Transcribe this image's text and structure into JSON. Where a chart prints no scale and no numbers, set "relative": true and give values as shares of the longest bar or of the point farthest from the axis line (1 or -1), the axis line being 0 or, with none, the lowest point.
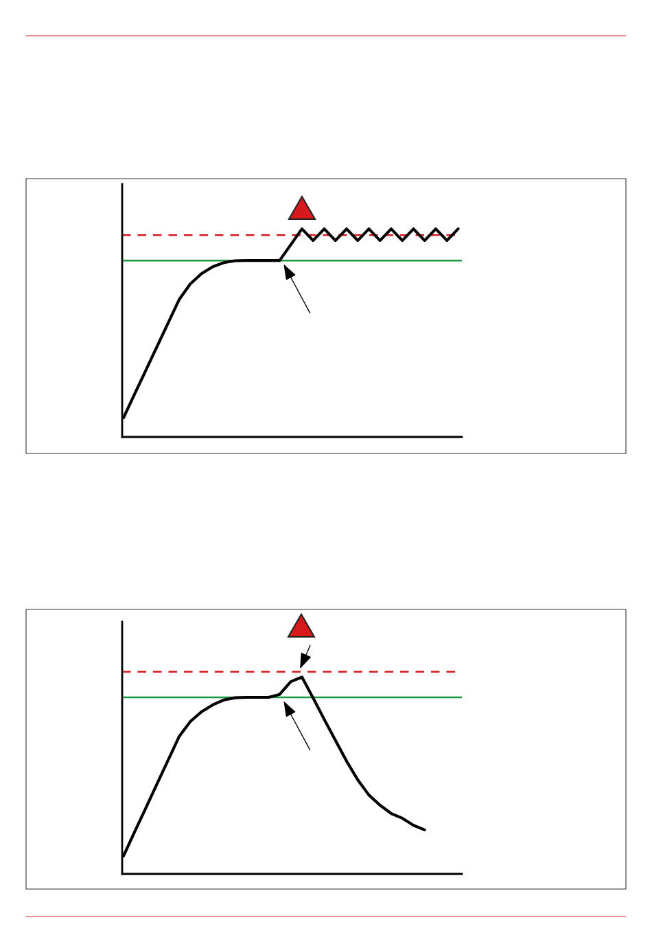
{
  "chart_data": [
    {
      "type": "line",
      "relative": true,
      "line_style": "solid",
      "categories": [
        null,
        null,
        null,
        null,
        null,
        null,
        null,
        null,
        null,
        null,
        null,
        null,
        null,
        null,
        null,
        null,
        null,
        null,
        null,
        null,
        null,
        null,
        null,
        null,
        null,
        null,
        null,
        null,
        null,
        null,
        null
      ],
      "series": [
        {
          "color": "#000000",
          "values": [
            0.092,
            0.207,
            0.32,
            0.434,
            0.548,
            0.661,
            0.736,
            0.785,
            0.818,
            0.838,
            0.847,
            0.848,
            0.848,
            0.848,
            0.848,
            0.924,
            1.0,
            0.944,
            1.0,
            0.944,
            1.0,
            0.944,
            1.0,
            0.944,
            1.0,
            0.944,
            1.0,
            0.944,
            1.0,
            0.944,
            1.0
          ]
        }
      ],
      "ref_lines": [
        {
          "axis": "y",
          "value": 0.848,
          "color": "#1a9641",
          "line_style": "solid"
        },
        {
          "axis": "y",
          "value": 0.97,
          "color": "#d7191c",
          "line_style": "dashed"
        }
      ]
    },
    {
      "type": "line",
      "relative": true,
      "line_style": "solid",
      "categories": [
        null,
        null,
        null,
        null,
        null,
        null,
        null,
        null,
        null,
        null,
        null,
        null,
        null,
        null,
        null,
        null,
        null,
        null,
        null,
        null,
        null,
        null,
        null,
        null,
        null,
        null,
        null,
        null,
        null,
        null,
        null
      ],
      "series": [
        {
          "color": "#000000",
          "values": [
            0.091,
            0.214,
            0.335,
            0.457,
            0.578,
            0.699,
            0.775,
            0.824,
            0.859,
            0.884,
            0.895,
            0.897,
            0.897,
            0.897,
            0.912,
            0.977,
            1.0,
            0.894,
            0.785,
            0.679,
            0.573,
            0.478,
            0.401,
            0.349,
            0.307,
            0.283,
            0.247,
            0.224,
            null,
            null,
            null
          ]
        }
      ],
      "ref_lines": [
        {
          "axis": "y",
          "value": 0.897,
          "color": "#1a9641",
          "line_style": "solid"
        },
        {
          "axis": "y",
          "value": 1.027,
          "color": "#d7191c",
          "line_style": "dashed"
        }
      ]
    }
  ]
}
